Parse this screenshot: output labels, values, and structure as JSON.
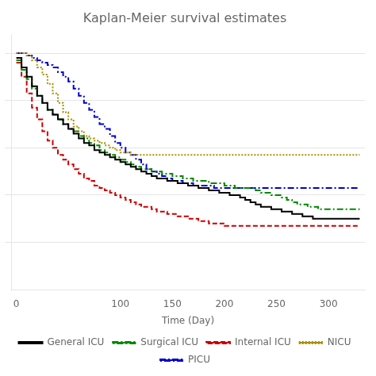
{
  "chart_data": {
    "type": "line",
    "title": "Kaplan-Meier survival estimates",
    "xlabel": "Time (Day)",
    "xlim": [
      -5,
      335
    ],
    "ylim": [
      0.0,
      1.08
    ],
    "xticks": [
      0,
      100,
      150,
      200,
      250,
      300
    ],
    "yticks": [
      0.2,
      0.4,
      0.6,
      0.8,
      1.0
    ],
    "grid": "y",
    "tick_labels": "x",
    "legend": "bottom",
    "series": [
      {
        "name": "General ICU",
        "color": "#000000",
        "line_style": "solid",
        "x": [
          0,
          5,
          10,
          15,
          20,
          25,
          30,
          35,
          40,
          45,
          50,
          55,
          60,
          65,
          70,
          75,
          80,
          85,
          90,
          95,
          100,
          105,
          110,
          115,
          120,
          125,
          130,
          135,
          140,
          145,
          150,
          155,
          160,
          165,
          170,
          175,
          180,
          185,
          190,
          195,
          200,
          205,
          210,
          215,
          220,
          225,
          230,
          235,
          240,
          245,
          250,
          255,
          260,
          265,
          270,
          275,
          280,
          285,
          290,
          295,
          300,
          305,
          310,
          315,
          320,
          325,
          330
        ],
        "values": [
          0.98,
          0.94,
          0.9,
          0.86,
          0.82,
          0.79,
          0.76,
          0.74,
          0.72,
          0.7,
          0.68,
          0.66,
          0.64,
          0.62,
          0.61,
          0.59,
          0.58,
          0.57,
          0.56,
          0.55,
          0.54,
          0.53,
          0.52,
          0.51,
          0.5,
          0.49,
          0.48,
          0.47,
          0.47,
          0.46,
          0.46,
          0.45,
          0.45,
          0.44,
          0.44,
          0.43,
          0.43,
          0.42,
          0.42,
          0.41,
          0.41,
          0.4,
          0.4,
          0.39,
          0.38,
          0.37,
          0.36,
          0.35,
          0.35,
          0.34,
          0.34,
          0.33,
          0.33,
          0.32,
          0.32,
          0.31,
          0.31,
          0.3,
          0.3,
          0.3,
          0.3,
          0.3,
          0.3,
          0.3,
          0.3,
          0.3,
          0.3
        ]
      },
      {
        "name": "Surgical ICU",
        "color": "#008800",
        "line_style": "dashdot",
        "x": [
          0,
          5,
          10,
          15,
          20,
          25,
          30,
          35,
          40,
          45,
          50,
          55,
          60,
          65,
          70,
          75,
          80,
          85,
          90,
          95,
          100,
          105,
          110,
          115,
          120,
          125,
          130,
          135,
          140,
          145,
          150,
          155,
          160,
          165,
          170,
          175,
          180,
          185,
          190,
          195,
          200,
          205,
          210,
          215,
          220,
          225,
          230,
          235,
          240,
          245,
          250,
          255,
          260,
          265,
          270,
          275,
          280,
          285,
          290,
          295,
          300,
          305,
          310,
          315,
          320,
          325,
          330
        ],
        "values": [
          0.97,
          0.93,
          0.89,
          0.85,
          0.82,
          0.79,
          0.76,
          0.74,
          0.72,
          0.7,
          0.68,
          0.67,
          0.65,
          0.64,
          0.62,
          0.61,
          0.59,
          0.58,
          0.57,
          0.56,
          0.55,
          0.54,
          0.53,
          0.52,
          0.51,
          0.51,
          0.5,
          0.5,
          0.49,
          0.49,
          0.48,
          0.48,
          0.47,
          0.47,
          0.46,
          0.46,
          0.46,
          0.45,
          0.45,
          0.45,
          0.44,
          0.44,
          0.43,
          0.43,
          0.43,
          0.43,
          0.42,
          0.41,
          0.41,
          0.4,
          0.4,
          0.39,
          0.38,
          0.37,
          0.36,
          0.36,
          0.35,
          0.35,
          0.34,
          0.34,
          0.34,
          0.34,
          0.34,
          0.34,
          0.34,
          0.34,
          0.34
        ]
      },
      {
        "name": "Internal ICU",
        "color": "#cc0000",
        "line_style": "dashed",
        "x": [
          0,
          5,
          10,
          15,
          20,
          25,
          30,
          35,
          40,
          45,
          50,
          55,
          60,
          65,
          70,
          75,
          80,
          85,
          90,
          95,
          100,
          105,
          110,
          115,
          120,
          125,
          130,
          135,
          140,
          145,
          150,
          155,
          160,
          165,
          170,
          175,
          180,
          185,
          190,
          195,
          200,
          205,
          210,
          215,
          220,
          225,
          230,
          235,
          240,
          245,
          250,
          255,
          260,
          265,
          270,
          275,
          280,
          285,
          290,
          295,
          300,
          305,
          310,
          315,
          320,
          325,
          330
        ],
        "values": [
          0.96,
          0.9,
          0.83,
          0.77,
          0.72,
          0.67,
          0.63,
          0.6,
          0.57,
          0.55,
          0.53,
          0.51,
          0.49,
          0.47,
          0.46,
          0.44,
          0.43,
          0.42,
          0.41,
          0.4,
          0.39,
          0.38,
          0.37,
          0.36,
          0.35,
          0.35,
          0.34,
          0.33,
          0.33,
          0.32,
          0.32,
          0.31,
          0.31,
          0.3,
          0.3,
          0.29,
          0.29,
          0.28,
          0.28,
          0.28,
          0.27,
          0.27,
          0.27,
          0.27,
          0.27,
          0.27,
          0.27,
          0.27,
          0.27,
          0.27,
          0.27,
          0.27,
          0.27,
          0.27,
          0.27,
          0.27,
          0.27,
          0.27,
          0.27,
          0.27,
          0.27,
          0.27,
          0.27,
          0.27,
          0.27,
          0.27,
          0.27
        ]
      },
      {
        "name": "NICU",
        "color": "#a89000",
        "line_style": "dotted",
        "x": [
          0,
          5,
          10,
          15,
          20,
          25,
          30,
          35,
          40,
          45,
          50,
          55,
          60,
          65,
          70,
          75,
          80,
          85,
          90,
          95,
          100,
          110,
          120,
          130,
          140,
          150,
          160,
          170,
          180,
          190,
          200,
          210,
          220,
          230,
          240,
          250,
          260,
          270,
          280,
          290,
          300,
          310,
          320,
          330
        ],
        "values": [
          1.0,
          1.0,
          0.99,
          0.97,
          0.94,
          0.91,
          0.87,
          0.83,
          0.79,
          0.75,
          0.72,
          0.69,
          0.67,
          0.65,
          0.64,
          0.63,
          0.62,
          0.61,
          0.6,
          0.59,
          0.58,
          0.57,
          0.57,
          0.57,
          0.57,
          0.57,
          0.57,
          0.57,
          0.57,
          0.57,
          0.57,
          0.57,
          0.57,
          0.57,
          0.57,
          0.57,
          0.57,
          0.57,
          0.57,
          0.57,
          0.57,
          0.57,
          0.57,
          0.57
        ]
      },
      {
        "name": "PICU",
        "color": "#0000cc",
        "line_style": "dashdot",
        "x": [
          0,
          5,
          10,
          15,
          20,
          25,
          30,
          35,
          40,
          45,
          50,
          55,
          60,
          65,
          70,
          75,
          80,
          85,
          90,
          95,
          100,
          105,
          110,
          115,
          120,
          125,
          130,
          135,
          140,
          145,
          150,
          160,
          170,
          180,
          190,
          200,
          210,
          220,
          230,
          240,
          250,
          260,
          270,
          280,
          290,
          300,
          310,
          320,
          330
        ],
        "values": [
          1.0,
          1.0,
          0.99,
          0.98,
          0.97,
          0.96,
          0.95,
          0.94,
          0.92,
          0.9,
          0.88,
          0.85,
          0.82,
          0.79,
          0.76,
          0.73,
          0.7,
          0.68,
          0.65,
          0.62,
          0.6,
          0.58,
          0.57,
          0.55,
          0.53,
          0.51,
          0.5,
          0.49,
          0.48,
          0.47,
          0.46,
          0.45,
          0.44,
          0.44,
          0.43,
          0.43,
          0.43,
          0.43,
          0.43,
          0.43,
          0.43,
          0.43,
          0.43,
          0.43,
          0.43,
          0.43,
          0.43,
          0.43,
          0.43
        ]
      }
    ]
  }
}
